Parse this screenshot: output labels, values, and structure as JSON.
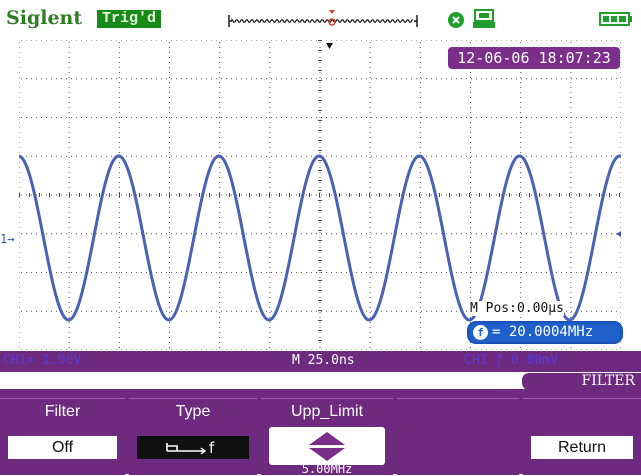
{
  "header": {
    "brand": "Siglent",
    "trigger_status": "Trig'd",
    "timestamp": "12-06-06 18:07:23"
  },
  "plot": {
    "ch1_marker": "1",
    "m_pos": "M Pos:0.00μs",
    "frequency": "= 20.0004MHz",
    "frequency_badge": "f"
  },
  "status_bar": {
    "ch1_scale": "CH1= 1.00V",
    "timebase": "M 25.0ns",
    "ch2_scale": "CH1 ƒ 0.00mV"
  },
  "menu": {
    "title": "FILTER",
    "softkeys": [
      {
        "label": "Filter",
        "value": "Off"
      },
      {
        "label": "Type",
        "value": ""
      },
      {
        "label": "Upp_Limit",
        "value": "5.00MHz"
      },
      {
        "label": "",
        "value": ""
      },
      {
        "label": "",
        "value": "Return"
      }
    ]
  },
  "colors": {
    "purple": "#6e2a7e",
    "waveform": "#4a61b5",
    "green": "#178a17"
  }
}
